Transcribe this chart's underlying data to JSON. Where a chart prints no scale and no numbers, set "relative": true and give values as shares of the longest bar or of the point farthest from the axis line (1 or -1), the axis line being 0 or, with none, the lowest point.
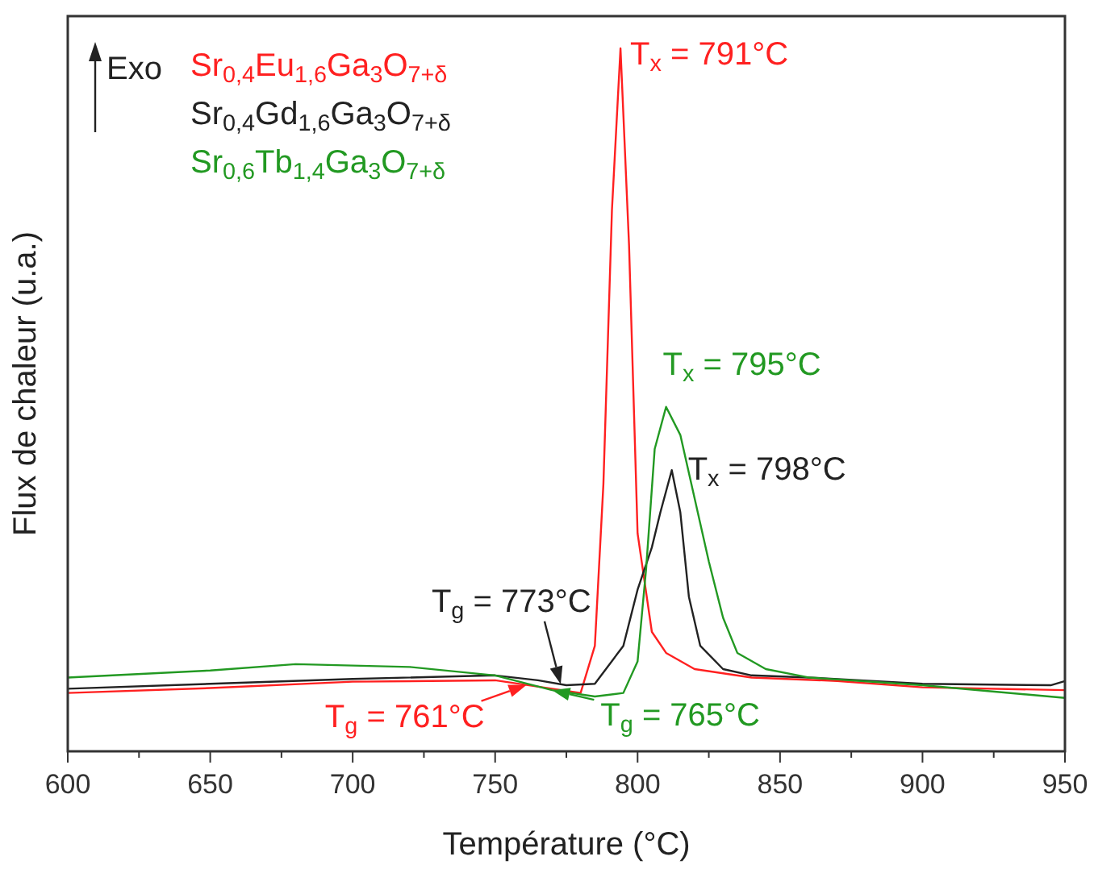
{
  "chart_data": {
    "type": "line",
    "relative": true,
    "xlabel": "Température (°C)",
    "ylabel": "Flux de chaleur (u.a.)",
    "xlim": [
      600,
      950
    ],
    "xticks": [
      600,
      {
        "value": 625,
        "label": null
      },
      650,
      {
        "value": 675,
        "label": null
      },
      700,
      {
        "value": 725,
        "label": null
      },
      750,
      {
        "value": 775,
        "label": null
      },
      800,
      {
        "value": 825,
        "label": null
      },
      850,
      {
        "value": 875,
        "label": null
      },
      900,
      {
        "value": 925,
        "label": null
      },
      950
    ],
    "grid": false,
    "legend": "top left",
    "marker": "none",
    "line_style": "solid",
    "series": [
      {
        "name": "Sr$_{0,4}$Eu$_{1,6}$Ga$_{3}$O$_{7+δ}$",
        "color": "#ff2020",
        "x": [
          600,
          650,
          700,
          750,
          770,
          780,
          785,
          788,
          791,
          794,
          797,
          800,
          805,
          810,
          820,
          840,
          870,
          900,
          950
        ],
        "values": [
          0.083,
          0.09,
          0.099,
          0.101,
          0.089,
          0.083,
          0.15,
          0.38,
          0.77,
          1,
          0.72,
          0.31,
          0.17,
          0.14,
          0.117,
          0.105,
          0.1,
          0.091,
          0.087
        ]
      },
      {
        "name": "Sr$_{0,4}$Gd$_{1,6}$Ga$_{3}$O$_{7+δ}$",
        "color": "#222222",
        "x": [
          600,
          650,
          700,
          750,
          765,
          775,
          785,
          795,
          800,
          805,
          808,
          812,
          815,
          818,
          822,
          830,
          840,
          860,
          900,
          945,
          950
        ],
        "values": [
          0.089,
          0.096,
          0.103,
          0.108,
          0.101,
          0.094,
          0.096,
          0.15,
          0.23,
          0.29,
          0.34,
          0.4,
          0.34,
          0.22,
          0.15,
          0.117,
          0.108,
          0.105,
          0.096,
          0.094,
          0.1
        ]
      },
      {
        "name": "Sr$_{0,6}$Tb$_{1,4}$Ga$_{3}$O$_{7+δ}$",
        "color": "#229922",
        "x": [
          600,
          650,
          680,
          720,
          750,
          770,
          785,
          795,
          800,
          803,
          806,
          810,
          815,
          820,
          825,
          830,
          835,
          845,
          860,
          900,
          950
        ],
        "values": [
          0.105,
          0.115,
          0.124,
          0.12,
          0.108,
          0.087,
          0.078,
          0.083,
          0.128,
          0.26,
          0.43,
          0.49,
          0.45,
          0.36,
          0.27,
          0.19,
          0.14,
          0.117,
          0.105,
          0.094,
          0.076
        ]
      }
    ],
    "annotations": [
      "Exo",
      {
        "text": "T$_{x}$ = 791°C",
        "x": 794,
        "y": 1
      },
      {
        "text": "T$_{x}$ = 795°C",
        "x": 810,
        "y": 0.49
      },
      {
        "text": "T$_{x}$ = 798°C",
        "x": 812,
        "y": 0.4
      },
      {
        "text": "T$_{g}$ = 773°C",
        "x": 773,
        "y": 0.0954
      },
      {
        "text": "T$_{g}$ = 761°C",
        "x": 761,
        "y": 0.0944
      },
      {
        "text": "T$_{g}$ = 765°C",
        "x": 770,
        "y": 0.087
      }
    ]
  }
}
